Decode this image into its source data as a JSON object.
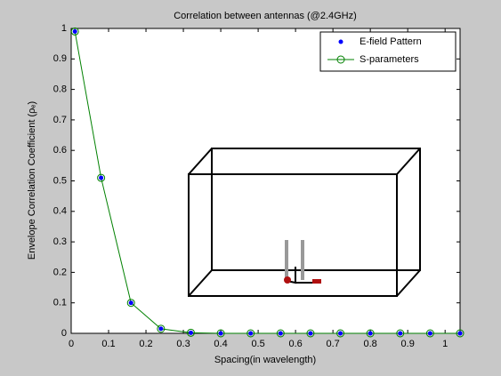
{
  "chart_data": {
    "type": "line",
    "title": "Correlation between antennas (@2.4GHz)",
    "xlabel": "Spacing(in wavelength)",
    "ylabel": "Envelope Correlation Coefficient (ρₑ)",
    "x": [
      0.01,
      0.08,
      0.16,
      0.24,
      0.32,
      0.4,
      0.48,
      0.56,
      0.64,
      0.72,
      0.8,
      0.88,
      0.96,
      1.04
    ],
    "series": [
      {
        "name": "E-field Pattern",
        "color": "#0000ff",
        "marker": "dot",
        "line": false,
        "values": [
          0.99,
          0.51,
          0.1,
          0.015,
          0.002,
          0,
          0,
          0,
          0,
          0,
          0,
          0,
          0,
          0
        ]
      },
      {
        "name": "S-parameters",
        "color": "#008000",
        "marker": "circle",
        "line": true,
        "values": [
          0.99,
          0.51,
          0.1,
          0.015,
          0.002,
          0,
          0,
          0,
          0,
          0,
          0,
          0,
          0,
          0
        ]
      }
    ],
    "xlim": [
      0,
      1.04
    ],
    "ylim": [
      0,
      1
    ],
    "xticks": [
      0,
      0.1,
      0.2,
      0.3,
      0.4,
      0.5,
      0.6,
      0.7,
      0.8,
      0.9,
      1
    ],
    "yticks": [
      0,
      0.1,
      0.2,
      0.3,
      0.4,
      0.5,
      0.6,
      0.7,
      0.8,
      0.9,
      1
    ],
    "legend": "top-right"
  }
}
